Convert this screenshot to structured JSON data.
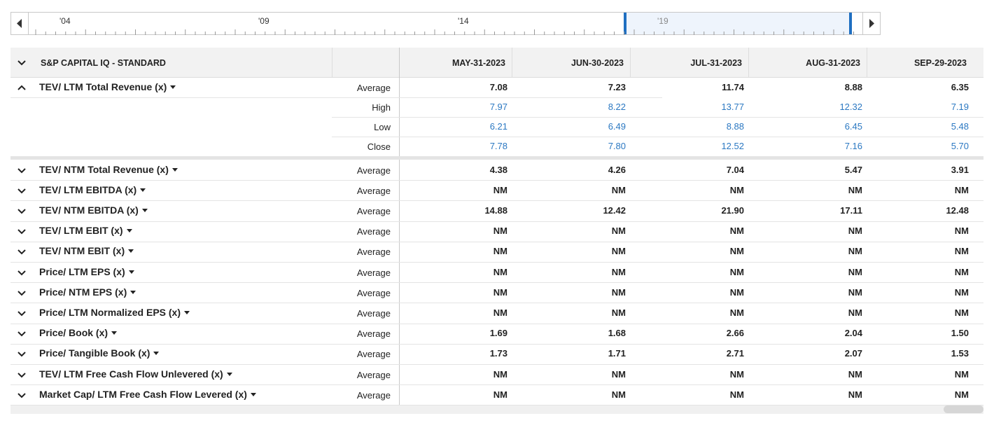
{
  "timeline": {
    "labels": [
      "'04",
      "'09",
      "'14",
      "'19"
    ]
  },
  "table": {
    "header": "S&P CAPITAL IQ - STANDARD",
    "columns": [
      "MAY-31-2023",
      "JUN-30-2023",
      "JUL-31-2023",
      "AUG-31-2023",
      "SEP-29-2023"
    ],
    "rows": [
      {
        "name": "TEV/ LTM Total Revenue (x)",
        "stats": [
          {
            "label": "Average",
            "values": [
              "7.08",
              "7.23",
              "11.74",
              "8.88",
              "6.35"
            ]
          },
          {
            "label": "High",
            "values": [
              "7.97",
              "8.22",
              "13.77",
              "12.32",
              "7.19"
            ]
          },
          {
            "label": "Low",
            "values": [
              "6.21",
              "6.49",
              "8.88",
              "6.45",
              "5.48"
            ]
          },
          {
            "label": "Close",
            "values": [
              "7.78",
              "7.80",
              "12.52",
              "7.16",
              "5.70"
            ]
          }
        ]
      },
      {
        "name": "TEV/ NTM Total Revenue (x)",
        "stats": [
          {
            "label": "Average",
            "values": [
              "4.38",
              "4.26",
              "7.04",
              "5.47",
              "3.91"
            ]
          }
        ]
      },
      {
        "name": "TEV/ LTM EBITDA (x)",
        "stats": [
          {
            "label": "Average",
            "values": [
              "NM",
              "NM",
              "NM",
              "NM",
              "NM"
            ]
          }
        ]
      },
      {
        "name": "TEV/ NTM EBITDA (x)",
        "stats": [
          {
            "label": "Average",
            "values": [
              "14.88",
              "12.42",
              "21.90",
              "17.11",
              "12.48"
            ]
          }
        ]
      },
      {
        "name": "TEV/ LTM EBIT (x)",
        "stats": [
          {
            "label": "Average",
            "values": [
              "NM",
              "NM",
              "NM",
              "NM",
              "NM"
            ]
          }
        ]
      },
      {
        "name": "TEV/ NTM EBIT (x)",
        "stats": [
          {
            "label": "Average",
            "values": [
              "NM",
              "NM",
              "NM",
              "NM",
              "NM"
            ]
          }
        ]
      },
      {
        "name": "Price/ LTM EPS (x)",
        "stats": [
          {
            "label": "Average",
            "values": [
              "NM",
              "NM",
              "NM",
              "NM",
              "NM"
            ]
          }
        ]
      },
      {
        "name": "Price/ NTM EPS (x)",
        "stats": [
          {
            "label": "Average",
            "values": [
              "NM",
              "NM",
              "NM",
              "NM",
              "NM"
            ]
          }
        ]
      },
      {
        "name": "Price/ LTM Normalized EPS (x)",
        "stats": [
          {
            "label": "Average",
            "values": [
              "NM",
              "NM",
              "NM",
              "NM",
              "NM"
            ]
          }
        ]
      },
      {
        "name": "Price/ Book (x)",
        "stats": [
          {
            "label": "Average",
            "values": [
              "1.69",
              "1.68",
              "2.66",
              "2.04",
              "1.50"
            ]
          }
        ]
      },
      {
        "name": "Price/ Tangible Book (x)",
        "stats": [
          {
            "label": "Average",
            "values": [
              "1.73",
              "1.71",
              "2.71",
              "2.07",
              "1.53"
            ]
          }
        ]
      },
      {
        "name": "TEV/ LTM Free Cash Flow Unlevered (x)",
        "stats": [
          {
            "label": "Average",
            "values": [
              "NM",
              "NM",
              "NM",
              "NM",
              "NM"
            ]
          }
        ]
      },
      {
        "name": "Market Cap/ LTM Free Cash Flow Levered (x)",
        "stats": [
          {
            "label": "Average",
            "values": [
              "NM",
              "NM",
              "NM",
              "NM",
              "NM"
            ]
          }
        ]
      }
    ]
  }
}
